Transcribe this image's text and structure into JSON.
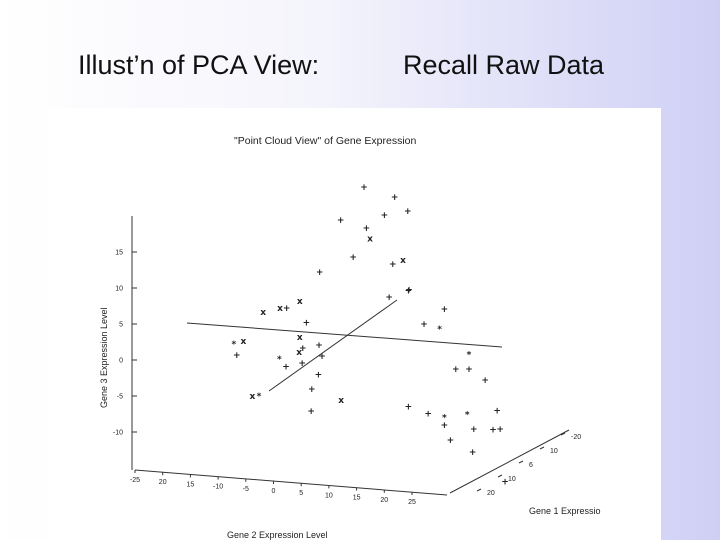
{
  "slide": {
    "title_left": "Illust’n of PCA View:",
    "title_right": "Recall Raw Data"
  },
  "chart_data": {
    "type": "scatter",
    "title": "\"Point Cloud View\" of Gene Expression",
    "zlabel": "Gene 3 Expression Level",
    "xlabel": "Gene 2 Expression Level",
    "ylabel": "Gene 1 Expressio",
    "z_ticks": [
      "15",
      "10",
      "5",
      "0",
      "-5",
      "-10"
    ],
    "x_ticks": [
      "-25",
      "20",
      "15",
      "-10",
      "-5",
      "0",
      "5",
      "10",
      "15",
      "20",
      "25"
    ],
    "y_ticks": [
      "-20",
      "10",
      "6",
      "10",
      "20"
    ],
    "colors": {
      "mark": "#222222",
      "axis": "#333333",
      "background": "#ffffff"
    },
    "points": [
      {
        "m": "+",
        "x": 10,
        "y": -9,
        "z": 19
      },
      {
        "m": "+",
        "x": 16,
        "y": -12,
        "z": 16
      },
      {
        "m": "+",
        "x": 18,
        "y": -12,
        "z": 14
      },
      {
        "m": "+",
        "x": 9,
        "y": -6,
        "z": 15
      },
      {
        "m": "+",
        "x": 6,
        "y": -8,
        "z": 15
      },
      {
        "m": "+",
        "x": 14,
        "y": -11,
        "z": 14
      },
      {
        "m": "x",
        "x": 10,
        "y": -7,
        "z": 13
      },
      {
        "m": "+",
        "x": 13,
        "y": -6,
        "z": 10
      },
      {
        "m": "+",
        "x": 7,
        "y": -6,
        "z": 11
      },
      {
        "m": "+",
        "x": 1,
        "y": -4,
        "z": 10
      },
      {
        "m": "+",
        "x": 14,
        "y": -3,
        "z": 8
      },
      {
        "m": "+",
        "x": 19,
        "y": -2,
        "z": 6
      },
      {
        "m": "+",
        "x": 15,
        "y": -5,
        "z": 7
      },
      {
        "m": "+",
        "x": 12,
        "y": -5,
        "z": 6
      },
      {
        "m": "x",
        "x": 15,
        "y": -7,
        "z": 10
      },
      {
        "m": "+",
        "x": 15,
        "y": 0,
        "z": 5
      },
      {
        "m": "+",
        "x": 18,
        "y": 4,
        "z": 1
      },
      {
        "m": "+",
        "x": 20,
        "y": 4,
        "z": 1
      },
      {
        "m": "+",
        "x": 22,
        "y": 5,
        "z": 0
      },
      {
        "m": "+",
        "x": 22,
        "y": 9,
        "z": -2
      },
      {
        "m": "+",
        "x": 22,
        "y": 10,
        "z": -4
      },
      {
        "m": "+",
        "x": 18,
        "y": 10,
        "z": -4
      },
      {
        "m": "+",
        "x": 16,
        "y": 14,
        "z": -5
      },
      {
        "m": "+",
        "x": 20,
        "y": 12,
        "z": -3
      },
      {
        "m": "+",
        "x": 20,
        "y": 16,
        "z": -8
      },
      {
        "m": "+",
        "x": 14,
        "y": 9,
        "z": -4
      },
      {
        "m": "+",
        "x": 14,
        "y": 11,
        "z": -5
      },
      {
        "m": "+",
        "x": 12,
        "y": 8,
        "z": -3
      },
      {
        "m": "+",
        "x": 9,
        "y": 8,
        "z": -2
      },
      {
        "m": "*",
        "x": 16,
        "y": 3,
        "z": 6
      },
      {
        "m": "*",
        "x": 20,
        "y": 4,
        "z": 3
      },
      {
        "m": "*",
        "x": 14,
        "y": 9,
        "z": -3
      },
      {
        "m": "*",
        "x": 17,
        "y": 10,
        "z": -2
      },
      {
        "m": "+",
        "x": -4,
        "y": -4,
        "z": 5
      },
      {
        "m": "x",
        "x": -8,
        "y": -3,
        "z": 5
      },
      {
        "m": "x",
        "x": -5,
        "y": -4,
        "z": 5
      },
      {
        "m": "x",
        "x": -2,
        "y": -4,
        "z": 6
      },
      {
        "m": "+",
        "x": -1,
        "y": -4,
        "z": 3
      },
      {
        "m": "+",
        "x": 0,
        "y": -2,
        "z": 1
      },
      {
        "m": "+",
        "x": -2,
        "y": -3,
        "z": 0
      },
      {
        "m": "x",
        "x": -3,
        "y": -2,
        "z": 0
      },
      {
        "m": "*",
        "x": -6,
        "y": -2,
        "z": -1
      },
      {
        "m": "+",
        "x": -5,
        "y": -2,
        "z": -2
      },
      {
        "m": "+",
        "x": -3,
        "y": -1,
        "z": -1
      },
      {
        "m": "+",
        "x": 0,
        "y": -1,
        "z": 0
      },
      {
        "m": "+",
        "x": -1,
        "y": 0,
        "z": -2
      },
      {
        "m": "+",
        "x": -2,
        "y": 0,
        "z": -4
      },
      {
        "m": "+",
        "x": -3,
        "y": 2,
        "z": -6
      },
      {
        "m": "x",
        "x": 2,
        "y": 1,
        "z": -5
      },
      {
        "m": "x",
        "x": -11,
        "y": 0,
        "z": -5
      },
      {
        "m": "x",
        "x": -11,
        "y": -3,
        "z": 1
      },
      {
        "m": "*",
        "x": -10,
        "y": 0,
        "z": -5
      },
      {
        "m": "*",
        "x": -12,
        "y": -4,
        "z": 0
      },
      {
        "m": "+",
        "x": -12,
        "y": -3,
        "z": -1
      },
      {
        "m": "x",
        "x": -2,
        "y": -4,
        "z": 1
      }
    ]
  }
}
